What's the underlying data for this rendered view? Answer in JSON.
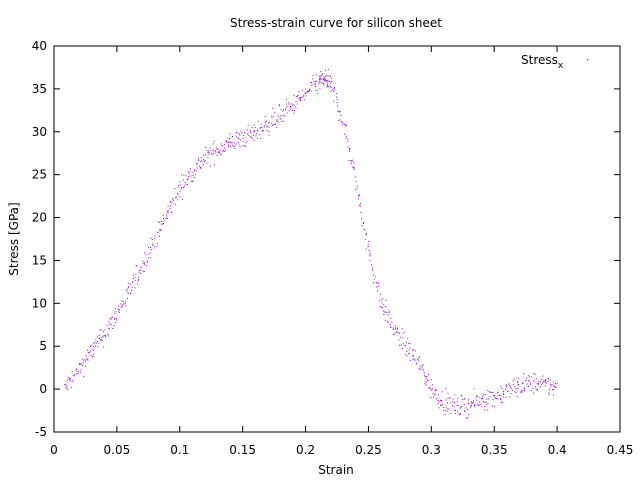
{
  "chart_data": {
    "type": "scatter",
    "title": "Stress-strain curve for silicon sheet",
    "xlabel": "Strain",
    "ylabel": "Stress [GPa]",
    "xlim": [
      0,
      0.45
    ],
    "ylim": [
      -5,
      40
    ],
    "xticks": [
      0,
      0.05,
      0.1,
      0.15,
      0.2,
      0.25,
      0.3,
      0.35,
      0.4,
      0.45
    ],
    "xtick_labels": [
      "0",
      "0.05",
      "0.1",
      "0.15",
      "0.2",
      "0.25",
      "0.3",
      "0.35",
      "0.4",
      "0.45"
    ],
    "yticks": [
      -5,
      0,
      5,
      10,
      15,
      20,
      25,
      30,
      35,
      40
    ],
    "ytick_labels": [
      "-5",
      "0",
      "5",
      "10",
      "15",
      "20",
      "25",
      "30",
      "35",
      "40"
    ],
    "grid": false,
    "legend_position": "top-right",
    "series": [
      {
        "name": "Stress",
        "name_subscript": "x",
        "color": "#9400d3",
        "noise": 0.6,
        "points_per_segment": 25,
        "x": [
          0.008,
          0.02,
          0.03,
          0.04,
          0.05,
          0.06,
          0.07,
          0.08,
          0.09,
          0.1,
          0.11,
          0.12,
          0.13,
          0.14,
          0.15,
          0.16,
          0.17,
          0.18,
          0.19,
          0.2,
          0.21,
          0.215,
          0.22,
          0.23,
          0.24,
          0.25,
          0.26,
          0.27,
          0.28,
          0.29,
          0.3,
          0.31,
          0.32,
          0.33,
          0.34,
          0.35,
          0.36,
          0.37,
          0.38,
          0.39,
          0.4
        ],
        "y": [
          0,
          2.5,
          4.5,
          6.5,
          9,
          11.5,
          14.5,
          17.5,
          20.5,
          23.5,
          25.5,
          27,
          28,
          28.8,
          29.3,
          30,
          31,
          32,
          33.2,
          34.5,
          35.8,
          36.2,
          35.5,
          31,
          24,
          16,
          10,
          7,
          5,
          3,
          0,
          -1.5,
          -2,
          -1.8,
          -1.2,
          -0.8,
          -0.2,
          0.5,
          0.8,
          0.5,
          0.3
        ]
      }
    ]
  }
}
